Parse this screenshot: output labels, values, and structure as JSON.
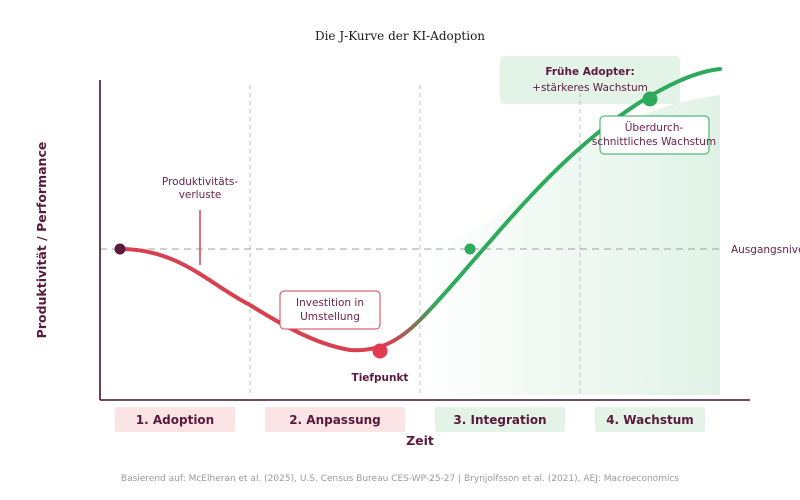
{
  "title": "Die J-Kurve der KI-Adoption",
  "axis": {
    "y_label": "Produktivität / Performance",
    "x_label": "Zeit"
  },
  "baseline_label": "Ausgangsnive",
  "annotations": {
    "loss_line1": "Produktivitäts-",
    "loss_line2": "verluste",
    "invest_line1": "Investition in",
    "invest_line2": "Umstellung",
    "trough": "Tiefpunkt",
    "above_line1": "Überdurch-",
    "above_line2": "schnittliches Wachstum",
    "early_title": "Frühe Adopter:",
    "early_sub": "+stärkeres Wachstum"
  },
  "phases": [
    {
      "label": "1. Adoption",
      "tone": "red"
    },
    {
      "label": "2. Anpassung",
      "tone": "red"
    },
    {
      "label": "3. Integration",
      "tone": "green"
    },
    {
      "label": "4. Wachstum",
      "tone": "green"
    }
  ],
  "footer": "Basierend auf: McElheran et al. (2025), U.S. Census Bureau CES-WP-25-27 | Brynjolfsson et al. (2021), AEJ: Macroeconomics",
  "colors": {
    "red": "#d6404f",
    "green": "#2eaa5c",
    "dark": "#5a1a3c",
    "axis": "#3d1530",
    "red_bg": "#fbe4e6",
    "green_bg": "#e3f3e8"
  }
}
